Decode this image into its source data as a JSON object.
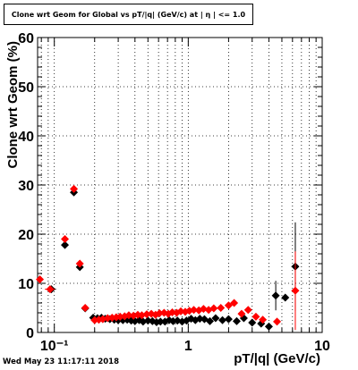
{
  "title": "Clone wrt Geom for Global vs pT/|q| (GeV/c) at | η | <= 1.0",
  "footer": "Wed May 23 11:17:11 2018",
  "chart_data": {
    "type": "scatter",
    "title": "Clone wrt Geom for Global vs pT/|q| (GeV/c) at | η | <= 1.0",
    "xlabel": "pT/|q| (GeV/c)",
    "ylabel": "Clone wrt Geom (%)",
    "xscale": "log",
    "xlim": [
      0.075,
      10
    ],
    "ylim": [
      0,
      60
    ],
    "grid": true,
    "x_tick_labels": [
      "10⁻¹",
      "1",
      "10"
    ],
    "x_tick_values": [
      0.1,
      1,
      10
    ],
    "y_tick_labels": [
      "0",
      "10",
      "20",
      "30",
      "40",
      "50",
      "60"
    ],
    "y_tick_values": [
      0,
      10,
      20,
      30,
      40,
      50,
      60
    ],
    "colors": {
      "series_black": "#000000",
      "series_red": "#ff0000"
    },
    "series": [
      {
        "color": "#000000",
        "points": [
          {
            "x": 0.095,
            "y": 8.8,
            "xerr": 0.008
          },
          {
            "x": 0.12,
            "y": 17.8
          },
          {
            "x": 0.14,
            "y": 28.5
          },
          {
            "x": 0.155,
            "y": 13.3
          },
          {
            "x": 0.17,
            "y": 4.9
          },
          {
            "x": 0.195,
            "y": 3.0
          },
          {
            "x": 0.21,
            "y": 2.9
          },
          {
            "x": 0.225,
            "y": 3.0
          },
          {
            "x": 0.24,
            "y": 2.8
          },
          {
            "x": 0.26,
            "y": 2.7
          },
          {
            "x": 0.28,
            "y": 2.6
          },
          {
            "x": 0.3,
            "y": 2.5
          },
          {
            "x": 0.325,
            "y": 2.5
          },
          {
            "x": 0.35,
            "y": 2.6
          },
          {
            "x": 0.375,
            "y": 2.4
          },
          {
            "x": 0.4,
            "y": 2.3
          },
          {
            "x": 0.43,
            "y": 2.5
          },
          {
            "x": 0.46,
            "y": 2.2
          },
          {
            "x": 0.5,
            "y": 2.4
          },
          {
            "x": 0.54,
            "y": 2.3
          },
          {
            "x": 0.58,
            "y": 2.1
          },
          {
            "x": 0.62,
            "y": 2.2
          },
          {
            "x": 0.67,
            "y": 2.2
          },
          {
            "x": 0.72,
            "y": 2.5
          },
          {
            "x": 0.77,
            "y": 2.3
          },
          {
            "x": 0.83,
            "y": 2.4
          },
          {
            "x": 0.9,
            "y": 2.2
          },
          {
            "x": 0.97,
            "y": 2.4
          },
          {
            "x": 1.05,
            "y": 2.8
          },
          {
            "x": 1.13,
            "y": 2.5
          },
          {
            "x": 1.22,
            "y": 2.8
          },
          {
            "x": 1.32,
            "y": 2.7
          },
          {
            "x": 1.45,
            "y": 2.3
          },
          {
            "x": 1.6,
            "y": 2.9
          },
          {
            "x": 1.8,
            "y": 2.5
          },
          {
            "x": 2.0,
            "y": 2.7
          },
          {
            "x": 2.3,
            "y": 2.3
          },
          {
            "x": 2.6,
            "y": 2.9
          },
          {
            "x": 3.0,
            "y": 2.0
          },
          {
            "x": 3.5,
            "y": 1.8
          },
          {
            "x": 4.0,
            "y": 1.2
          },
          {
            "x": 4.5,
            "y": 7.5,
            "yerr": 3.0
          },
          {
            "x": 5.3,
            "y": 7.1
          },
          {
            "x": 6.3,
            "y": 13.4,
            "yerr": 9.0,
            "xerr": 0.4
          }
        ]
      },
      {
        "color": "#ff0000",
        "points": [
          {
            "x": 0.078,
            "y": 10.8
          },
          {
            "x": 0.093,
            "y": 8.8,
            "xerr": 0.008
          },
          {
            "x": 0.12,
            "y": 19.0
          },
          {
            "x": 0.14,
            "y": 29.2
          },
          {
            "x": 0.155,
            "y": 14.0
          },
          {
            "x": 0.17,
            "y": 5.0
          },
          {
            "x": 0.2,
            "y": 2.5
          },
          {
            "x": 0.215,
            "y": 2.6
          },
          {
            "x": 0.23,
            "y": 2.7
          },
          {
            "x": 0.25,
            "y": 2.9
          },
          {
            "x": 0.27,
            "y": 3.0
          },
          {
            "x": 0.29,
            "y": 3.1
          },
          {
            "x": 0.31,
            "y": 3.2
          },
          {
            "x": 0.335,
            "y": 3.3
          },
          {
            "x": 0.36,
            "y": 3.5
          },
          {
            "x": 0.39,
            "y": 3.4
          },
          {
            "x": 0.42,
            "y": 3.6
          },
          {
            "x": 0.45,
            "y": 3.5
          },
          {
            "x": 0.49,
            "y": 3.7
          },
          {
            "x": 0.53,
            "y": 3.8
          },
          {
            "x": 0.57,
            "y": 3.6
          },
          {
            "x": 0.61,
            "y": 3.9
          },
          {
            "x": 0.66,
            "y": 4.0
          },
          {
            "x": 0.71,
            "y": 3.8
          },
          {
            "x": 0.76,
            "y": 4.1
          },
          {
            "x": 0.82,
            "y": 4.0
          },
          {
            "x": 0.88,
            "y": 4.3
          },
          {
            "x": 0.95,
            "y": 4.2
          },
          {
            "x": 1.02,
            "y": 4.4
          },
          {
            "x": 1.1,
            "y": 4.6
          },
          {
            "x": 1.2,
            "y": 4.5
          },
          {
            "x": 1.3,
            "y": 4.8
          },
          {
            "x": 1.42,
            "y": 4.6
          },
          {
            "x": 1.55,
            "y": 4.9
          },
          {
            "x": 1.75,
            "y": 5.0
          },
          {
            "x": 2.0,
            "y": 5.5
          },
          {
            "x": 2.2,
            "y": 6.0
          },
          {
            "x": 2.5,
            "y": 3.8
          },
          {
            "x": 2.8,
            "y": 4.6
          },
          {
            "x": 3.2,
            "y": 3.2
          },
          {
            "x": 3.6,
            "y": 2.6
          },
          {
            "x": 4.6,
            "y": 2.2
          },
          {
            "x": 6.3,
            "y": 8.5,
            "yerr": 8.0,
            "xerr": 0.4
          }
        ]
      }
    ]
  }
}
